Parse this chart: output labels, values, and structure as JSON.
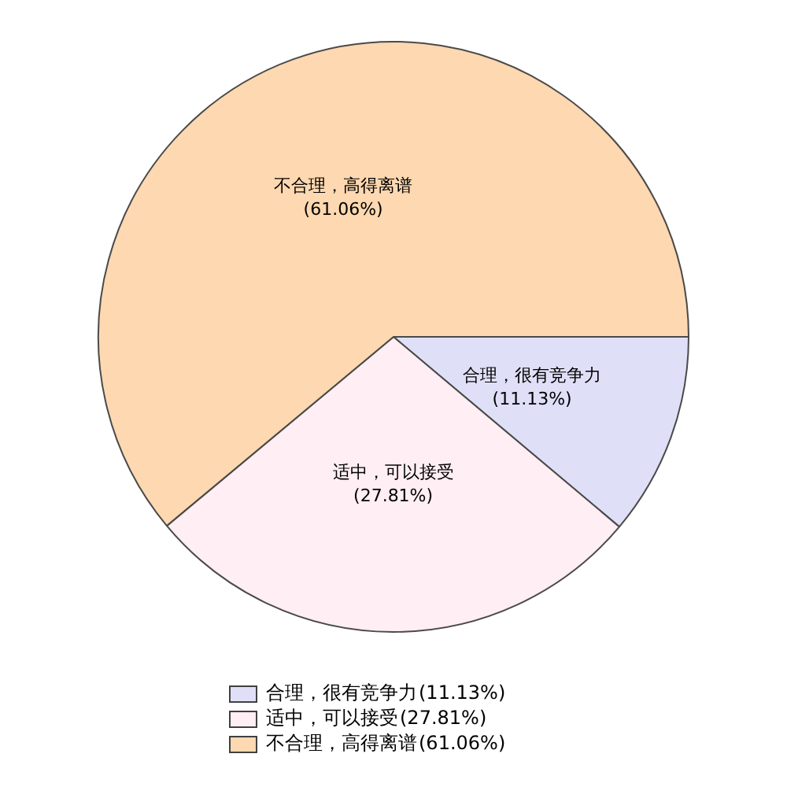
{
  "chart_data": {
    "type": "pie",
    "categories": [
      "合理，很有竞争力",
      "适中，可以接受",
      "不合理，高得离谱"
    ],
    "values": [
      11.13,
      27.81,
      61.06
    ],
    "colors": [
      "#dfe0f7",
      "#ffeef3",
      "#fdd8b0"
    ],
    "value_labels": [
      "(11.13%)",
      "(27.81%)",
      "(61.06%)"
    ],
    "legend": "bottom"
  }
}
